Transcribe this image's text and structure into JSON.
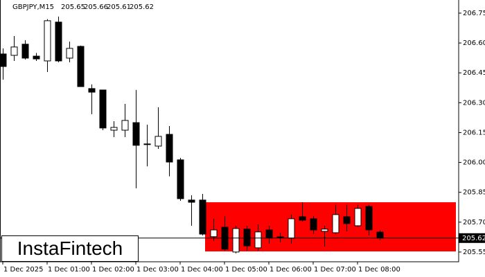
{
  "chart_data": {
    "type": "candlestick",
    "symbol": "GBPJPY,M15",
    "ohlc": [
      205.65,
      205.66,
      205.61,
      205.62
    ],
    "last_price": 205.62,
    "categories": [
      "1 Dec 2025",
      null,
      null,
      null,
      "1 Dec 01:00",
      null,
      null,
      null,
      "1 Dec 02:00",
      null,
      null,
      null,
      "1 Dec 03:00",
      null,
      null,
      null,
      "1 Dec 04:00",
      null,
      null,
      null,
      "1 Dec 05:00",
      null,
      null,
      null,
      "1 Dec 06:00",
      null,
      null,
      null,
      "1 Dec 07:00",
      null,
      null,
      null,
      "1 Dec 08:00",
      null,
      null
    ],
    "open": [
      206.545,
      206.538,
      206.594,
      206.534,
      206.51,
      206.705,
      206.524,
      206.583,
      206.371,
      206.364,
      206.162,
      206.162,
      206.2,
      206.093,
      206.082,
      206.141,
      206.013,
      205.811,
      205.811,
      205.627,
      205.675,
      205.55,
      205.665,
      205.571,
      205.661,
      205.626,
      205.62,
      205.727,
      205.717,
      205.654,
      205.647,
      205.727,
      205.682,
      205.779,
      205.65
    ],
    "high": [
      206.573,
      206.635,
      206.614,
      206.55,
      206.72,
      206.733,
      206.607,
      206.587,
      206.392,
      206.364,
      206.207,
      206.294,
      206.364,
      206.19,
      206.277,
      206.183,
      206.023,
      205.835,
      205.842,
      205.717,
      205.731,
      205.682,
      205.682,
      205.689,
      205.682,
      205.647,
      205.738,
      205.8,
      205.731,
      205.682,
      205.787,
      205.787,
      205.787,
      205.787,
      205.66
    ],
    "low": [
      206.416,
      206.51,
      206.517,
      206.51,
      206.454,
      206.503,
      206.503,
      206.381,
      206.242,
      206.162,
      206.127,
      206.127,
      205.87,
      205.98,
      206.068,
      205.93,
      205.807,
      205.682,
      205.633,
      205.606,
      205.557,
      205.543,
      205.557,
      205.557,
      205.592,
      205.599,
      205.592,
      205.703,
      205.64,
      205.578,
      205.64,
      205.654,
      205.675,
      205.633,
      205.61
    ],
    "close": [
      206.482,
      206.58,
      206.524,
      206.52,
      206.712,
      206.51,
      206.573,
      206.381,
      206.353,
      206.173,
      206.176,
      206.211,
      206.086,
      206.09,
      206.131,
      206.002,
      205.818,
      205.8,
      205.64,
      205.661,
      205.564,
      205.668,
      205.581,
      205.651,
      205.62,
      205.623,
      205.717,
      205.71,
      205.661,
      205.665,
      205.738,
      205.693,
      205.769,
      205.661,
      205.62
    ],
    "zone": {
      "upper": 205.8,
      "lower": 205.553,
      "color": "#ff0000"
    },
    "ylim": [
      205.501,
      206.816
    ],
    "yticks": [
      205.55,
      {
        "value": 205.7,
        "label": "205.70"
      },
      205.85,
      {
        "value": 206.0,
        "label": "206.00"
      },
      206.15,
      {
        "value": 206.3,
        "label": "206.30"
      },
      206.45,
      {
        "value": 206.6,
        "label": "206.60"
      },
      206.75
    ],
    "logo": "InstaFintech"
  }
}
